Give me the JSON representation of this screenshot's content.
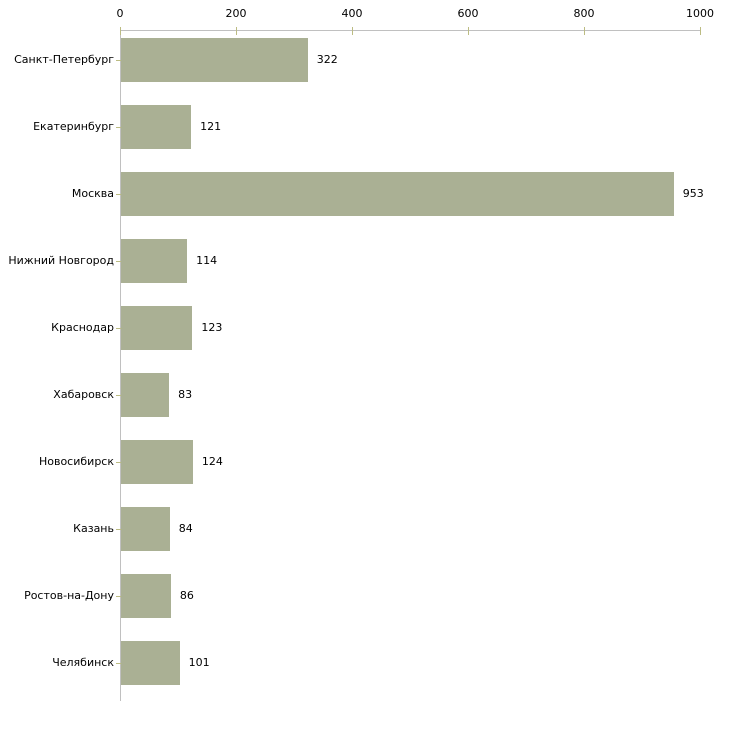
{
  "chart_data": {
    "type": "bar",
    "orientation": "horizontal",
    "title": "",
    "xlabel": "",
    "ylabel": "",
    "categories": [
      "Санкт-Петербург",
      "Екатеринбург",
      "Москва",
      "Нижний Новгород",
      "Краснодар",
      "Хабаровск",
      "Новосибирск",
      "Казань",
      "Ростов-на-Дону",
      "Челябинск"
    ],
    "values": [
      322,
      121,
      953,
      114,
      123,
      83,
      124,
      84,
      86,
      101
    ],
    "value_labels": [
      "322",
      "121",
      "953",
      "114",
      "123",
      "83",
      "124",
      "84",
      "86",
      "101"
    ],
    "x_ticks": [
      0,
      200,
      400,
      600,
      800,
      1000
    ],
    "x_tick_labels": [
      "0",
      "200",
      "400",
      "600",
      "800",
      "1000"
    ],
    "xlim": [
      0,
      1000
    ],
    "grid": false,
    "legend": false,
    "axis_position": "top",
    "colors": {
      "bar": "#aab094",
      "axis_line": "#c0c0c0",
      "tick_mark": "#bcbc83",
      "text": "#000000",
      "background": "#ffffff"
    }
  }
}
